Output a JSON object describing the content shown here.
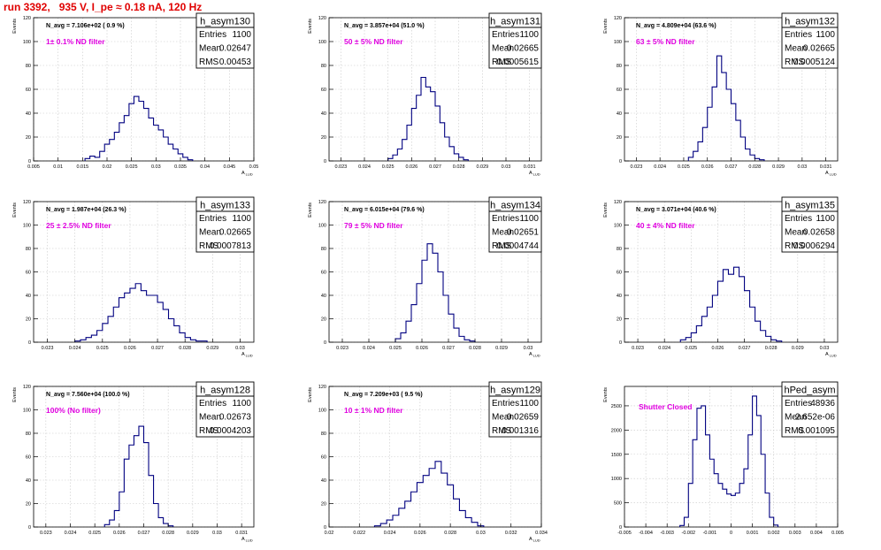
{
  "header": {
    "run_title": "run 3392,   935 V, I_pe ≈ 0.18 nA, 120 Hz"
  },
  "colors": {
    "title": "#e00000",
    "histogram": "#000080",
    "filter_label": "#e000e0",
    "axes": "#000000"
  },
  "chart_data": [
    {
      "type": "bar",
      "name": "h_asym130",
      "nav_label": "N_avg = 7.106e+02 ( 0.9 %)",
      "filter_label": "1± 0.1% ND filter",
      "stats": {
        "entries_label": "Entries",
        "entries": "1100",
        "mean_label": "Mean",
        "mean": "0.02647",
        "rms_label": "RMS",
        "rms": "0.00453"
      },
      "ylabel": "Events",
      "xlabel": "A_LUD",
      "xlim": [
        0.005,
        0.05
      ],
      "ylim": [
        0,
        120
      ],
      "xticks": [
        "0.005",
        "0.01",
        "0.015",
        "0.02",
        "0.025",
        "0.03",
        "0.035",
        "0.04",
        "0.045",
        "0.05"
      ],
      "yticks": [
        "0",
        "20",
        "40",
        "60",
        "80",
        "100",
        "120"
      ],
      "bin_edges": [
        0.0155,
        0.0165,
        0.0175,
        0.0185,
        0.0195,
        0.0205,
        0.0215,
        0.0225,
        0.0235,
        0.0245,
        0.0255,
        0.0265,
        0.0275,
        0.0285,
        0.0295,
        0.0305,
        0.0315,
        0.0325,
        0.0335,
        0.0345,
        0.0355,
        0.0365,
        0.0375
      ],
      "values": [
        2,
        4,
        3,
        8,
        14,
        18,
        24,
        32,
        38,
        48,
        54,
        50,
        44,
        36,
        30,
        26,
        20,
        14,
        10,
        6,
        3,
        1
      ]
    },
    {
      "type": "bar",
      "name": "h_asym131",
      "nav_label": "N_avg = 3.857e+04 (51.0 %)",
      "filter_label": "50 ± 5% ND filter",
      "stats": {
        "entries_label": "Entries",
        "entries": "1100",
        "mean_label": "Mean",
        "mean": "0.02665",
        "rms_label": "RMS",
        "rms": "0.0005615"
      },
      "ylabel": "Events",
      "xlabel": "A_LUD",
      "xlim": [
        0.0225,
        0.0315
      ],
      "ylim": [
        0,
        120
      ],
      "xticks": [
        "0.023",
        "0.024",
        "0.025",
        "0.026",
        "0.027",
        "0.028",
        "0.029",
        "0.03",
        "0.031"
      ],
      "yticks": [
        "0",
        "20",
        "40",
        "60",
        "80",
        "100",
        "120"
      ],
      "bin_edges": [
        0.025,
        0.0252,
        0.0254,
        0.0256,
        0.0258,
        0.026,
        0.0262,
        0.0264,
        0.0266,
        0.0268,
        0.027,
        0.0272,
        0.0274,
        0.0276,
        0.0278,
        0.028,
        0.0282,
        0.0284
      ],
      "values": [
        2,
        5,
        10,
        18,
        30,
        44,
        55,
        70,
        62,
        58,
        46,
        32,
        20,
        12,
        6,
        3,
        1
      ]
    },
    {
      "type": "bar",
      "name": "h_asym132",
      "nav_label": "N_avg = 4.809e+04 (63.6 %)",
      "filter_label": "63 ± 5% ND filter",
      "stats": {
        "entries_label": "Entries",
        "entries": "1100",
        "mean_label": "Mean",
        "mean": "0.02665",
        "rms_label": "RMS",
        "rms": "0.0005124"
      },
      "ylabel": "Events",
      "xlabel": "A_LUD",
      "xlim": [
        0.0225,
        0.0315
      ],
      "ylim": [
        0,
        120
      ],
      "xticks": [
        "0.023",
        "0.024",
        "0.025",
        "0.026",
        "0.027",
        "0.028",
        "0.029",
        "0.03",
        "0.031"
      ],
      "yticks": [
        "0",
        "20",
        "40",
        "60",
        "80",
        "100",
        "120"
      ],
      "bin_edges": [
        0.0252,
        0.0254,
        0.0256,
        0.0258,
        0.026,
        0.0262,
        0.0264,
        0.0266,
        0.0268,
        0.027,
        0.0272,
        0.0274,
        0.0276,
        0.0278,
        0.028,
        0.0282,
        0.0284
      ],
      "values": [
        3,
        8,
        16,
        28,
        45,
        62,
        88,
        74,
        60,
        48,
        34,
        20,
        10,
        5,
        2,
        1
      ]
    },
    {
      "type": "bar",
      "name": "h_asym133",
      "nav_label": "N_avg = 1.987e+04 (26.3 %)",
      "filter_label": "25 ± 2.5% ND filter",
      "stats": {
        "entries_label": "Entries",
        "entries": "1100",
        "mean_label": "Mean",
        "mean": "0.02665",
        "rms_label": "RMS",
        "rms": "0.0007813"
      },
      "ylabel": "Events",
      "xlabel": "A_LUD",
      "xlim": [
        0.0225,
        0.0305
      ],
      "ylim": [
        0,
        120
      ],
      "xticks": [
        "0.023",
        "0.024",
        "0.025",
        "0.026",
        "0.027",
        "0.028",
        "0.029",
        "0.03"
      ],
      "yticks": [
        "0",
        "20",
        "40",
        "60",
        "80",
        "100",
        "120"
      ],
      "bin_edges": [
        0.024,
        0.0242,
        0.0244,
        0.0246,
        0.0248,
        0.025,
        0.0252,
        0.0254,
        0.0256,
        0.0258,
        0.026,
        0.0262,
        0.0264,
        0.0266,
        0.0268,
        0.027,
        0.0272,
        0.0274,
        0.0276,
        0.0278,
        0.028,
        0.0282,
        0.0284,
        0.0286,
        0.0288
      ],
      "values": [
        1,
        2,
        4,
        6,
        10,
        16,
        22,
        30,
        38,
        42,
        46,
        50,
        44,
        40,
        40,
        34,
        28,
        20,
        14,
        8,
        4,
        2,
        1,
        1
      ]
    },
    {
      "type": "bar",
      "name": "h_asym134",
      "nav_label": "N_avg = 6.015e+04 (79.6 %)",
      "filter_label": "79 ± 5% ND filter",
      "stats": {
        "entries_label": "Entries",
        "entries": "1100",
        "mean_label": "Mean",
        "mean": "0.02651",
        "rms_label": "RMS",
        "rms": "0.0004744"
      },
      "ylabel": "Events",
      "xlabel": "A_LUD",
      "xlim": [
        0.0225,
        0.0305
      ],
      "ylim": [
        0,
        120
      ],
      "xticks": [
        "0.023",
        "0.024",
        "0.025",
        "0.026",
        "0.027",
        "0.028",
        "0.029",
        "0.03"
      ],
      "yticks": [
        "0",
        "20",
        "40",
        "60",
        "80",
        "100",
        "120"
      ],
      "bin_edges": [
        0.025,
        0.0252,
        0.0254,
        0.0256,
        0.0258,
        0.026,
        0.0262,
        0.0264,
        0.0266,
        0.0268,
        0.027,
        0.0272,
        0.0274,
        0.0276,
        0.0278,
        0.028
      ],
      "values": [
        3,
        8,
        18,
        32,
        50,
        70,
        84,
        76,
        60,
        40,
        24,
        12,
        5,
        2,
        1
      ]
    },
    {
      "type": "bar",
      "name": "h_asym135",
      "nav_label": "N_avg = 3.071e+04 (40.6 %)",
      "filter_label": "40 ± 4% ND filter",
      "stats": {
        "entries_label": "Entries",
        "entries": "1100",
        "mean_label": "Mean",
        "mean": "0.02658",
        "rms_label": "RMS",
        "rms": "0.0006294"
      },
      "ylabel": "Events",
      "xlabel": "A_LUD",
      "xlim": [
        0.0225,
        0.0305
      ],
      "ylim": [
        0,
        120
      ],
      "xticks": [
        "0.023",
        "0.024",
        "0.025",
        "0.026",
        "0.027",
        "0.028",
        "0.029",
        "0.03"
      ],
      "yticks": [
        "0",
        "20",
        "40",
        "60",
        "80",
        "100",
        "120"
      ],
      "bin_edges": [
        0.0246,
        0.0248,
        0.025,
        0.0252,
        0.0254,
        0.0256,
        0.0258,
        0.026,
        0.0262,
        0.0264,
        0.0266,
        0.0268,
        0.027,
        0.0272,
        0.0274,
        0.0276,
        0.0278,
        0.028,
        0.0282,
        0.0284
      ],
      "values": [
        2,
        4,
        8,
        14,
        22,
        30,
        40,
        52,
        62,
        58,
        64,
        56,
        44,
        30,
        18,
        10,
        5,
        2,
        1
      ]
    },
    {
      "type": "bar",
      "name": "h_asym128",
      "nav_label": "N_avg = 7.560e+04 (100.0 %)",
      "filter_label": "100% (No filter)",
      "stats": {
        "entries_label": "Entries",
        "entries": "1100",
        "mean_label": "Mean",
        "mean": "0.02673",
        "rms_label": "RMS",
        "rms": "0.0004203"
      },
      "ylabel": "Events",
      "xlabel": "A_LUD",
      "xlim": [
        0.0225,
        0.0315
      ],
      "ylim": [
        0,
        120
      ],
      "xticks": [
        "0.023",
        "0.024",
        "0.025",
        "0.026",
        "0.027",
        "0.028",
        "0.029",
        "0.03",
        "0.031"
      ],
      "yticks": [
        "0",
        "20",
        "40",
        "60",
        "80",
        "100",
        "120"
      ],
      "bin_edges": [
        0.0254,
        0.0256,
        0.0258,
        0.026,
        0.0262,
        0.0264,
        0.0266,
        0.0268,
        0.027,
        0.0272,
        0.0274,
        0.0276,
        0.0278,
        0.028,
        0.0282
      ],
      "values": [
        2,
        6,
        14,
        30,
        58,
        70,
        78,
        86,
        72,
        44,
        20,
        8,
        3,
        1
      ]
    },
    {
      "type": "bar",
      "name": "h_asym129",
      "nav_label": "N_avg = 7.209e+03 ( 9.5 %)",
      "filter_label": "10 ± 1% ND filter",
      "stats": {
        "entries_label": "Entries",
        "entries": "1100",
        "mean_label": "Mean",
        "mean": "0.02659",
        "rms_label": "RMS",
        "rms": "0.001316"
      },
      "ylabel": "Events",
      "xlabel": "A_LUD",
      "xlim": [
        0.02,
        0.034
      ],
      "ylim": [
        0,
        120
      ],
      "xticks": [
        "0.02",
        "0.022",
        "0.024",
        "0.026",
        "0.028",
        "0.03",
        "0.032",
        "0.034"
      ],
      "yticks": [
        "0",
        "20",
        "40",
        "60",
        "80",
        "100",
        "120"
      ],
      "bin_edges": [
        0.023,
        0.0234,
        0.0238,
        0.0242,
        0.0246,
        0.025,
        0.0254,
        0.0258,
        0.0262,
        0.0266,
        0.027,
        0.0274,
        0.0278,
        0.0282,
        0.0286,
        0.029,
        0.0294,
        0.0298,
        0.0302
      ],
      "values": [
        1,
        3,
        6,
        10,
        16,
        22,
        30,
        38,
        44,
        50,
        56,
        46,
        36,
        24,
        14,
        8,
        4,
        1
      ]
    },
    {
      "type": "bar",
      "name": "hPed_asym",
      "nav_label": "",
      "filter_label": "Shutter Closed",
      "stats": {
        "entries_label": "Entries",
        "entries": "48936",
        "mean_label": "Mean",
        "mean": "2.652e-06",
        "rms_label": "RMS",
        "rms": "0.001095"
      },
      "ylabel": "Events",
      "xlabel": "",
      "xlim": [
        -0.005,
        0.005
      ],
      "ylim": [
        0,
        2900
      ],
      "xticks": [
        "-0.005",
        "-0.004",
        "-0.003",
        "-0.002",
        "-0.001",
        "0",
        "0.001",
        "0.002",
        "0.003",
        "0.004",
        "0.005"
      ],
      "yticks": [
        "0",
        "500",
        "1000",
        "1500",
        "2000",
        "2500"
      ],
      "bin_edges": [
        -0.0024,
        -0.0022,
        -0.002,
        -0.0018,
        -0.0016,
        -0.0014,
        -0.0012,
        -0.001,
        -0.0008,
        -0.0006,
        -0.0004,
        -0.0002,
        0.0,
        0.0002,
        0.0004,
        0.0006,
        0.0008,
        0.001,
        0.0012,
        0.0014,
        0.0016,
        0.0018,
        0.002,
        0.0022
      ],
      "values": [
        30,
        200,
        900,
        1800,
        2450,
        2500,
        1900,
        1400,
        1100,
        900,
        780,
        680,
        650,
        700,
        900,
        1200,
        1900,
        2700,
        2300,
        1500,
        700,
        200,
        40
      ]
    }
  ]
}
